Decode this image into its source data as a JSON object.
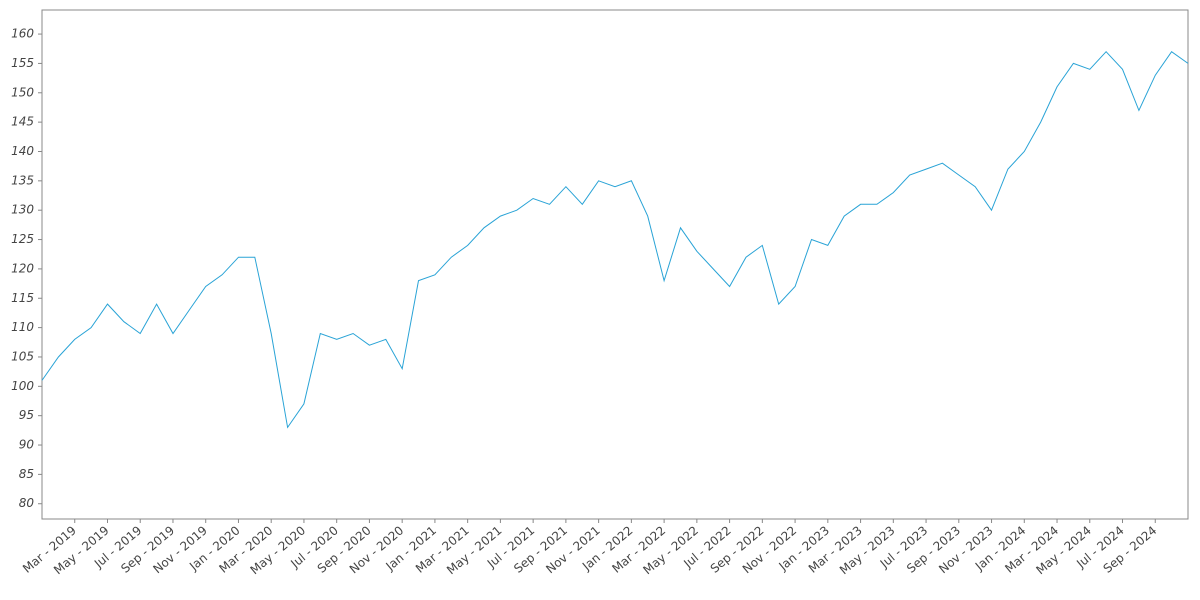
{
  "chart_data": {
    "type": "line",
    "categories": [
      null,
      null,
      "Mar - 2019",
      null,
      "May - 2019",
      null,
      "Jul - 2019",
      null,
      "Sep - 2019",
      null,
      "Nov - 2019",
      null,
      "Jan - 2020",
      null,
      "Mar - 2020",
      null,
      "May - 2020",
      null,
      "Jul - 2020",
      null,
      "Sep - 2020",
      null,
      "Nov - 2020",
      null,
      "Jan - 2021",
      null,
      "Mar - 2021",
      null,
      "May - 2021",
      null,
      "Jul - 2021",
      null,
      "Sep - 2021",
      null,
      "Nov - 2021",
      null,
      "Jan - 2022",
      null,
      "Mar - 2022",
      null,
      "May - 2022",
      null,
      "Jul - 2022",
      null,
      "Sep - 2022",
      null,
      "Nov - 2022",
      null,
      "Jan - 2023",
      null,
      "Mar - 2023",
      null,
      "May - 2023",
      null,
      "Jul - 2023",
      null,
      "Sep - 2023",
      null,
      "Nov - 2023",
      null,
      "Jan - 2024",
      null,
      "Mar - 2024",
      null,
      "May - 2024",
      null,
      "Jul - 2024",
      null,
      "Sep - 2024",
      null,
      null
    ],
    "values": [
      101,
      105,
      108,
      110,
      114,
      111,
      109,
      114,
      109,
      113,
      117,
      119,
      122,
      122,
      109,
      93,
      97,
      109,
      108,
      109,
      107,
      108,
      103,
      118,
      119,
      122,
      124,
      127,
      129,
      130,
      132,
      131,
      134,
      131,
      135,
      134,
      135,
      129,
      118,
      127,
      123,
      120,
      117,
      122,
      124,
      114,
      117,
      125,
      124,
      129,
      131,
      131,
      133,
      136,
      137,
      138,
      136,
      134,
      130,
      137,
      140,
      145,
      151,
      155,
      154,
      157,
      154,
      147,
      153,
      157,
      155
    ],
    "color": "#29a3d6",
    "ylim": [
      77.4,
      164.1
    ],
    "yticks": [
      80,
      85,
      90,
      95,
      100,
      105,
      110,
      115,
      120,
      125,
      130,
      135,
      140,
      145,
      150,
      155,
      160
    ],
    "grid": false
  }
}
